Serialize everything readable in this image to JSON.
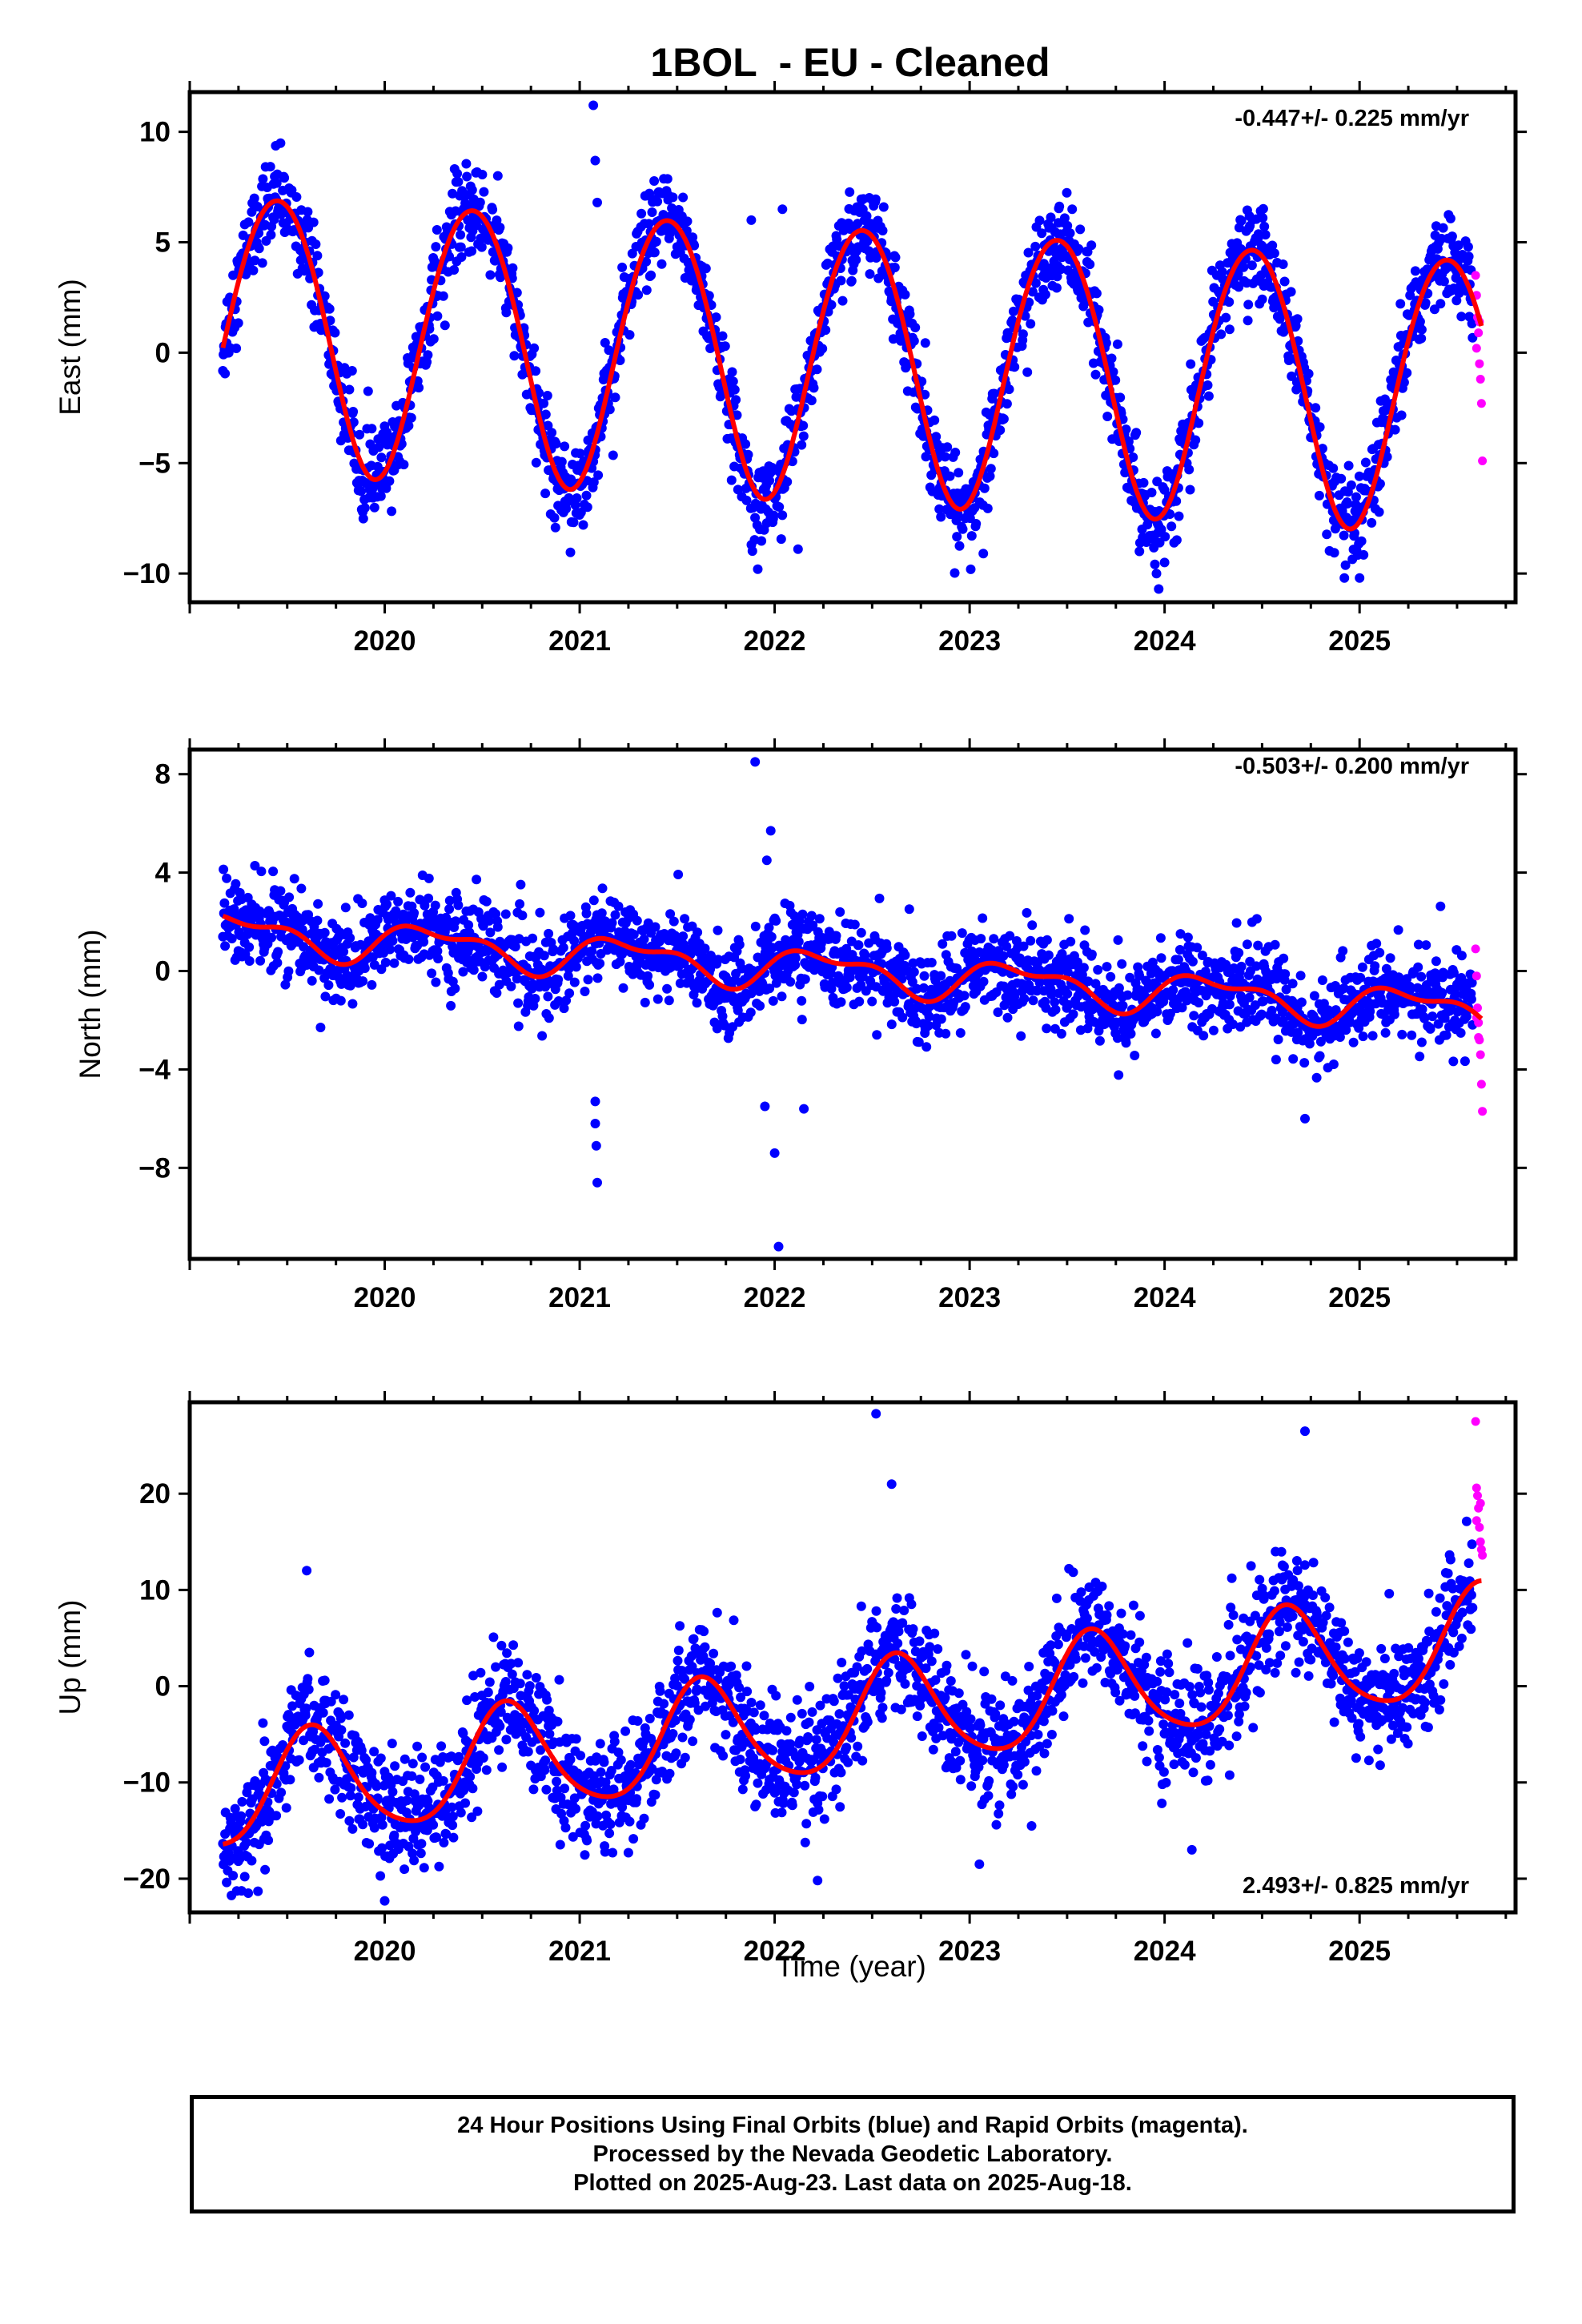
{
  "title": "1BOL  - EU - Cleaned",
  "xlabel": "Time (year)",
  "footer": {
    "line1": "24 Hour Positions Using Final Orbits (blue) and Rapid Orbits (magenta).",
    "line2": "Processed by the Nevada Geodetic Laboratory.",
    "line3": "Plotted on 2025-Aug-23. Last data on 2025-Aug-18."
  },
  "colors": {
    "final": "#0000ff",
    "rapid": "#ff00ff",
    "fit": "#ff0000",
    "axes": "#000000"
  },
  "chart_data": [
    {
      "type": "scatter",
      "name": "east",
      "ylabel": "East (mm)",
      "rate_text": "-0.447+/- 0.225 mm/yr",
      "xlim": [
        2019.0,
        2025.8
      ],
      "ylim": [
        -11.3,
        11.8
      ],
      "yticks": [
        10,
        5,
        0,
        -5,
        -10
      ],
      "ytick_labels": [
        "10",
        "5",
        "0",
        "−5",
        "−10"
      ],
      "xticks": [
        2020,
        2021,
        2022,
        2023,
        2024,
        2025
      ],
      "x_start": 2019.17,
      "x_end_final": 2025.58,
      "x_end_rapid": 2025.63,
      "trend": {
        "rate": -0.447,
        "offset": 1.1,
        "annual_amp": 6.2,
        "annual_peak": 0.45,
        "semiannual_amp": 0.3,
        "semiannual_phase": 0.2
      },
      "noise_sd": 1.0,
      "outliers": [
        [
          2021.07,
          11.2
        ],
        [
          2021.08,
          8.7
        ],
        [
          2021.09,
          6.8
        ],
        [
          2022.04,
          6.5
        ],
        [
          2022.12,
          -8.9
        ],
        [
          2023.97,
          -10.7
        ],
        [
          2024.0,
          -9.5
        ],
        [
          2025.0,
          -10.2
        ],
        [
          2021.88,
          6.0
        ],
        [
          2023.07,
          -9.1
        ]
      ],
      "rapid_points": [
        [
          2025.595,
          3.5
        ],
        [
          2025.6,
          2.6
        ],
        [
          2025.605,
          1.6
        ],
        [
          2025.61,
          0.9
        ],
        [
          2025.615,
          -0.5
        ],
        [
          2025.62,
          -1.2
        ],
        [
          2025.625,
          -2.3
        ],
        [
          2025.63,
          -4.9
        ],
        [
          2025.6,
          0.2
        ],
        [
          2025.615,
          1.4
        ]
      ]
    },
    {
      "type": "scatter",
      "name": "north",
      "ylabel": "North (mm)",
      "rate_text": "-0.503+/- 0.200 mm/yr",
      "xlim": [
        2019.0,
        2025.8
      ],
      "ylim": [
        -11.7,
        9.0
      ],
      "yticks": [
        8,
        4,
        0,
        -4,
        -8
      ],
      "ytick_labels": [
        "8",
        "4",
        "0",
        "−4",
        "−8"
      ],
      "xticks": [
        2020,
        2021,
        2022,
        2023,
        2024,
        2025
      ],
      "x_start": 2019.17,
      "x_end_final": 2025.58,
      "x_end_rapid": 2025.63,
      "trend": {
        "rate": -0.503,
        "offset": 1.6,
        "annual_amp": 0.7,
        "annual_peak": 0.25,
        "semiannual_amp": 0.35,
        "semiannual_phase": 0.05
      },
      "noise_sd": 0.9,
      "outliers": [
        [
          2021.08,
          -5.3
        ],
        [
          2021.08,
          -6.2
        ],
        [
          2021.085,
          -7.1
        ],
        [
          2021.09,
          -8.6
        ],
        [
          2021.9,
          8.5
        ],
        [
          2021.98,
          5.7
        ],
        [
          2022.0,
          -7.4
        ],
        [
          2022.02,
          -11.2
        ],
        [
          2021.95,
          -5.5
        ],
        [
          2024.72,
          -6.0
        ],
        [
          2022.15,
          -5.6
        ],
        [
          2021.96,
          4.5
        ]
      ],
      "rapid_points": [
        [
          2025.595,
          0.9
        ],
        [
          2025.6,
          -0.2
        ],
        [
          2025.605,
          -1.5
        ],
        [
          2025.61,
          -2.1
        ],
        [
          2025.615,
          -2.8
        ],
        [
          2025.62,
          -3.4
        ],
        [
          2025.625,
          -4.6
        ],
        [
          2025.63,
          -5.7
        ],
        [
          2025.6,
          -1.9
        ],
        [
          2025.61,
          -2.7
        ]
      ]
    },
    {
      "type": "scatter",
      "name": "up",
      "ylabel": "Up (mm)",
      "rate_text": "2.493+/- 0.825 mm/yr",
      "xlim": [
        2019.0,
        2025.8
      ],
      "ylim": [
        -23.5,
        29.5
      ],
      "yticks": [
        20,
        10,
        0,
        -10,
        -20
      ],
      "ytick_labels": [
        "20",
        "10",
        "0",
        "−10",
        "−20"
      ],
      "xticks": [
        2020,
        2021,
        2022,
        2023,
        2024,
        2025
      ],
      "x_start": 2019.17,
      "x_end_final": 2025.58,
      "x_end_rapid": 2025.63,
      "trend": {
        "rate": 2.493,
        "offset": -11.5,
        "annual_amp": 5.6,
        "annual_peak": 0.63,
        "semiannual_amp": 0.8,
        "semiannual_phase": 0.1
      },
      "noise_sd": 3.1,
      "outliers": [
        [
          2022.52,
          28.3
        ],
        [
          2022.6,
          21.0
        ],
        [
          2024.72,
          26.5
        ],
        [
          2019.3,
          -21.5
        ],
        [
          2019.35,
          -21.3
        ],
        [
          2020.0,
          -22.3
        ],
        [
          2024.14,
          -17.0
        ],
        [
          2022.22,
          -20.2
        ],
        [
          2019.6,
          12.0
        ],
        [
          2023.05,
          -18.5
        ],
        [
          2021.25,
          -17.3
        ]
      ],
      "rapid_points": [
        [
          2025.595,
          27.5
        ],
        [
          2025.6,
          20.6
        ],
        [
          2025.605,
          19.8
        ],
        [
          2025.61,
          18.5
        ],
        [
          2025.615,
          16.5
        ],
        [
          2025.62,
          15.0
        ],
        [
          2025.625,
          14.2
        ],
        [
          2025.63,
          13.6
        ],
        [
          2025.6,
          17.2
        ],
        [
          2025.62,
          19.0
        ]
      ]
    }
  ]
}
